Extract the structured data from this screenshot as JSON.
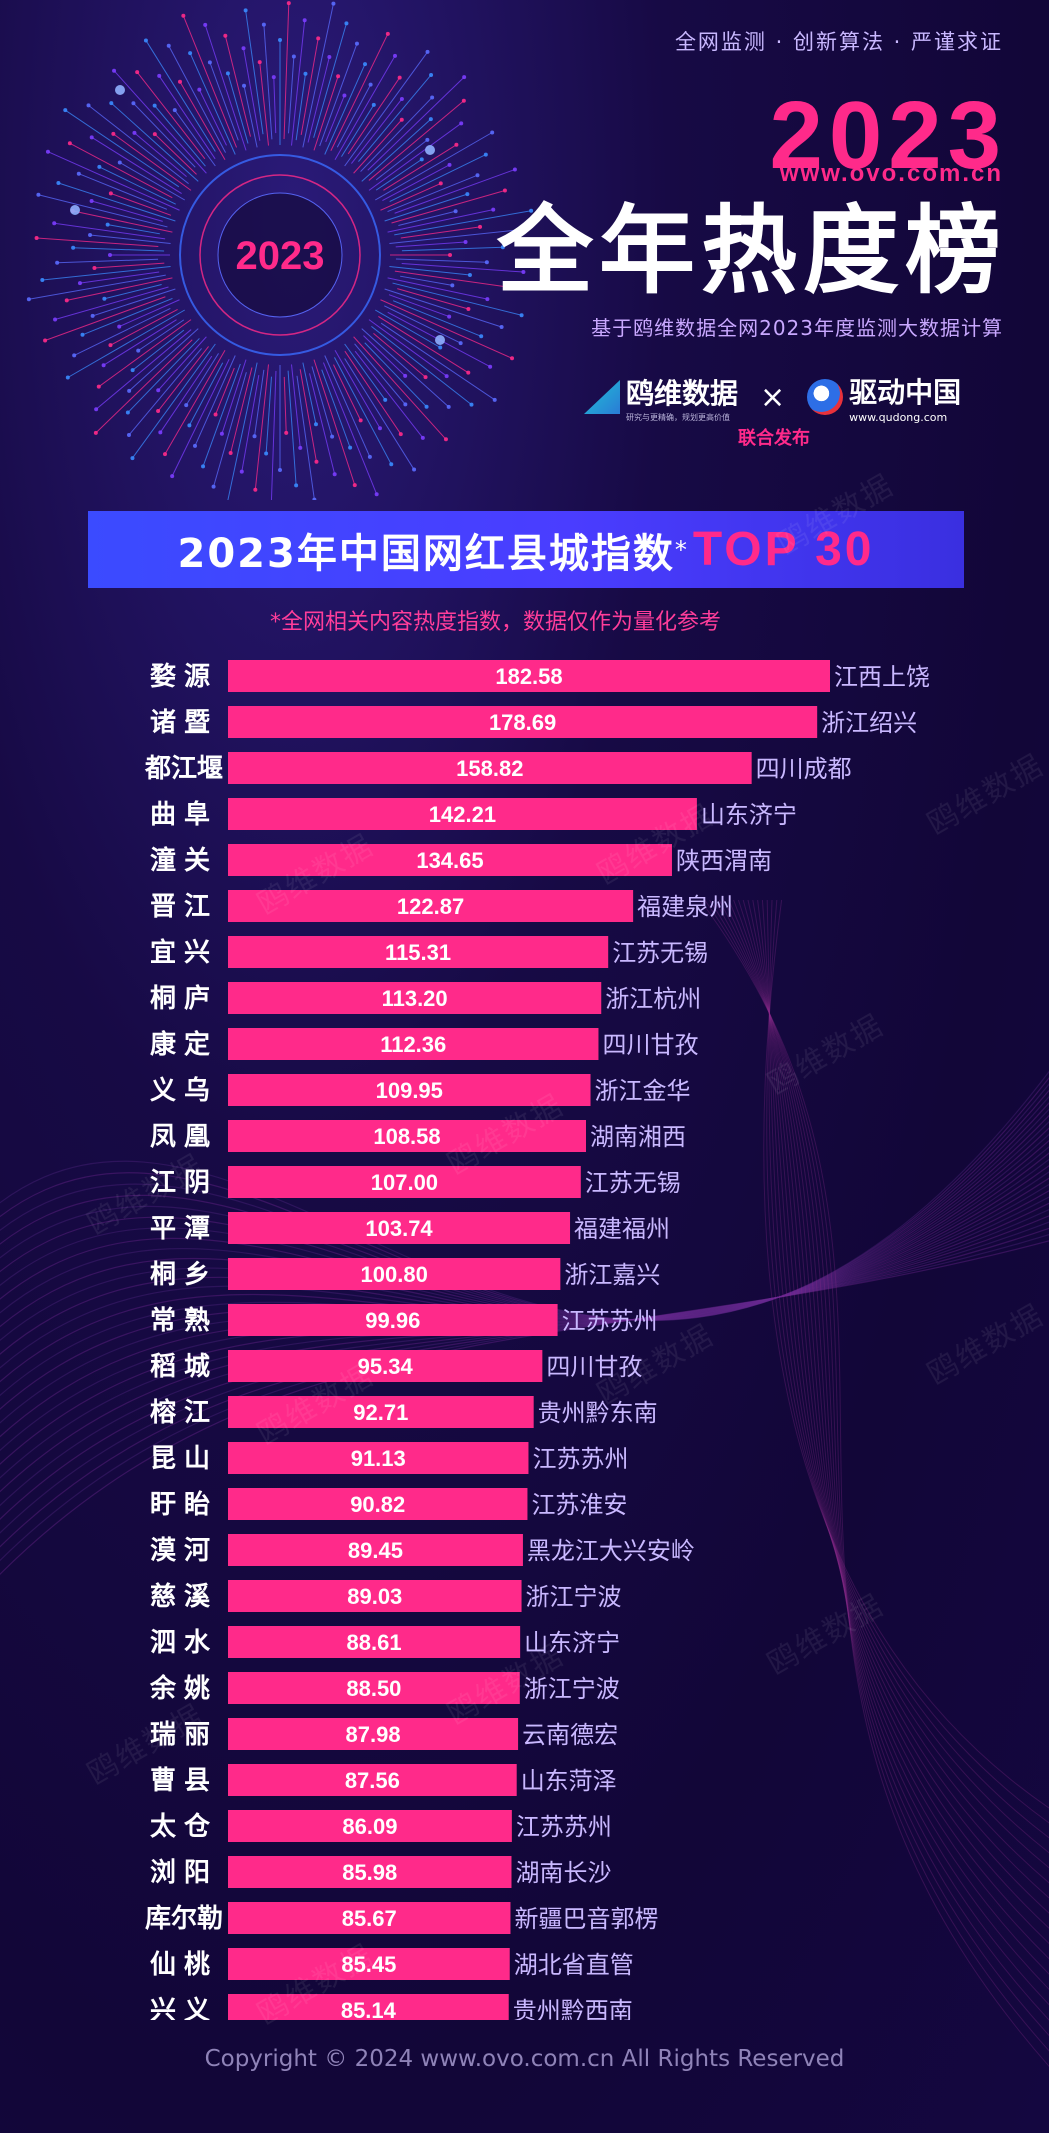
{
  "header": {
    "tagline": "全网监测 · 创新算法 · 严谨求证",
    "year": "2023",
    "url": "www.ovo.com.cn",
    "title": "全年热度榜",
    "subtitle": "基于鸥维数据全网2023年度监测大数据计算",
    "badge_year": "2023"
  },
  "logos": {
    "ovo_name": "鸥维数据",
    "ovo_sub": "研究与更精确，规划更高价值",
    "times": "×",
    "qudong_name": "驱动中国",
    "qudong_url": "www.qudong.com",
    "joint_release": "联合发布"
  },
  "banner": {
    "title": "2023年中国网红县城指数",
    "star": "*",
    "top": "TOP 30"
  },
  "note": "*全网相关内容热度指数，数据仅作为量化参考",
  "watermark": "鸥维数据",
  "copyright": "Copyright © 2024  www.ovo.com.cn All Rights Reserved",
  "colors": {
    "bar": "#ff2a8a",
    "background": "#16083a",
    "banner": "#3b4bff",
    "region_text": "#c9b8ff"
  },
  "chart_data": {
    "type": "bar",
    "orientation": "horizontal",
    "categories": [
      "婺源",
      "诸暨",
      "都江堰",
      "曲阜",
      "潼关",
      "晋江",
      "宜兴",
      "桐庐",
      "康定",
      "义乌",
      "凤凰",
      "江阴",
      "平潭",
      "桐乡",
      "常熟",
      "稻城",
      "榕江",
      "昆山",
      "盱眙",
      "漠河",
      "慈溪",
      "泗水",
      "余姚",
      "瑞丽",
      "曹县",
      "太仓",
      "浏阳",
      "库尔勒",
      "仙桃",
      "兴义"
    ],
    "values": [
      182.58,
      178.69,
      158.82,
      142.21,
      134.65,
      122.87,
      115.31,
      113.2,
      112.36,
      109.95,
      108.58,
      107.0,
      103.74,
      100.8,
      99.96,
      95.34,
      92.71,
      91.13,
      90.82,
      89.45,
      89.03,
      88.61,
      88.5,
      87.98,
      87.56,
      86.09,
      85.98,
      85.67,
      85.45,
      85.14
    ],
    "value_labels": [
      "182.58",
      "178.69",
      "158.82",
      "142.21",
      "134.65",
      "122.87",
      "115.31",
      "113.20",
      "112.36",
      "109.95",
      "108.58",
      "107.00",
      "103.74",
      "100.80",
      "99.96",
      "95.34",
      "92.71",
      "91.13",
      "90.82",
      "89.45",
      "89.03",
      "88.61",
      "88.50",
      "87.98",
      "87.56",
      "86.09",
      "85.98",
      "85.67",
      "85.45",
      "85.14"
    ],
    "regions": [
      "江西上饶",
      "浙江绍兴",
      "四川成都",
      "山东济宁",
      "陕西渭南",
      "福建泉州",
      "江苏无锡",
      "浙江杭州",
      "四川甘孜",
      "浙江金华",
      "湖南湘西",
      "江苏无锡",
      "福建福州",
      "浙江嘉兴",
      "江苏苏州",
      "四川甘孜",
      "贵州黔东南",
      "江苏苏州",
      "江苏淮安",
      "黑龙江大兴安岭",
      "浙江宁波",
      "山东济宁",
      "浙江宁波",
      "云南德宏",
      "山东菏泽",
      "江苏苏州",
      "湖南长沙",
      "新疆巴音郭楞",
      "湖北省直管",
      "贵州黔西南"
    ]
  }
}
